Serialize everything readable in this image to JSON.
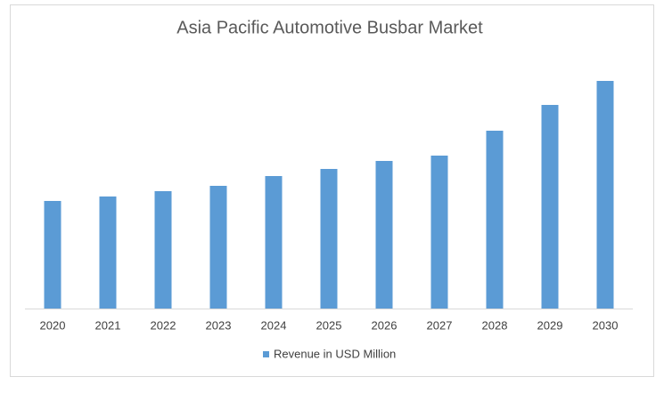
{
  "chart_data": {
    "type": "bar",
    "title": "Asia Pacific Automotive Busbar Market",
    "categories": [
      "2020",
      "2021",
      "2022",
      "2023",
      "2024",
      "2025",
      "2026",
      "2027",
      "2028",
      "2029",
      "2030"
    ],
    "series": [
      {
        "name": "Revenue in USD Million",
        "color": "#5b9bd5",
        "values": [
          121,
          126,
          132,
          138,
          149,
          157,
          166,
          172,
          200,
          229,
          256
        ]
      }
    ],
    "legend": "bottom"
  }
}
